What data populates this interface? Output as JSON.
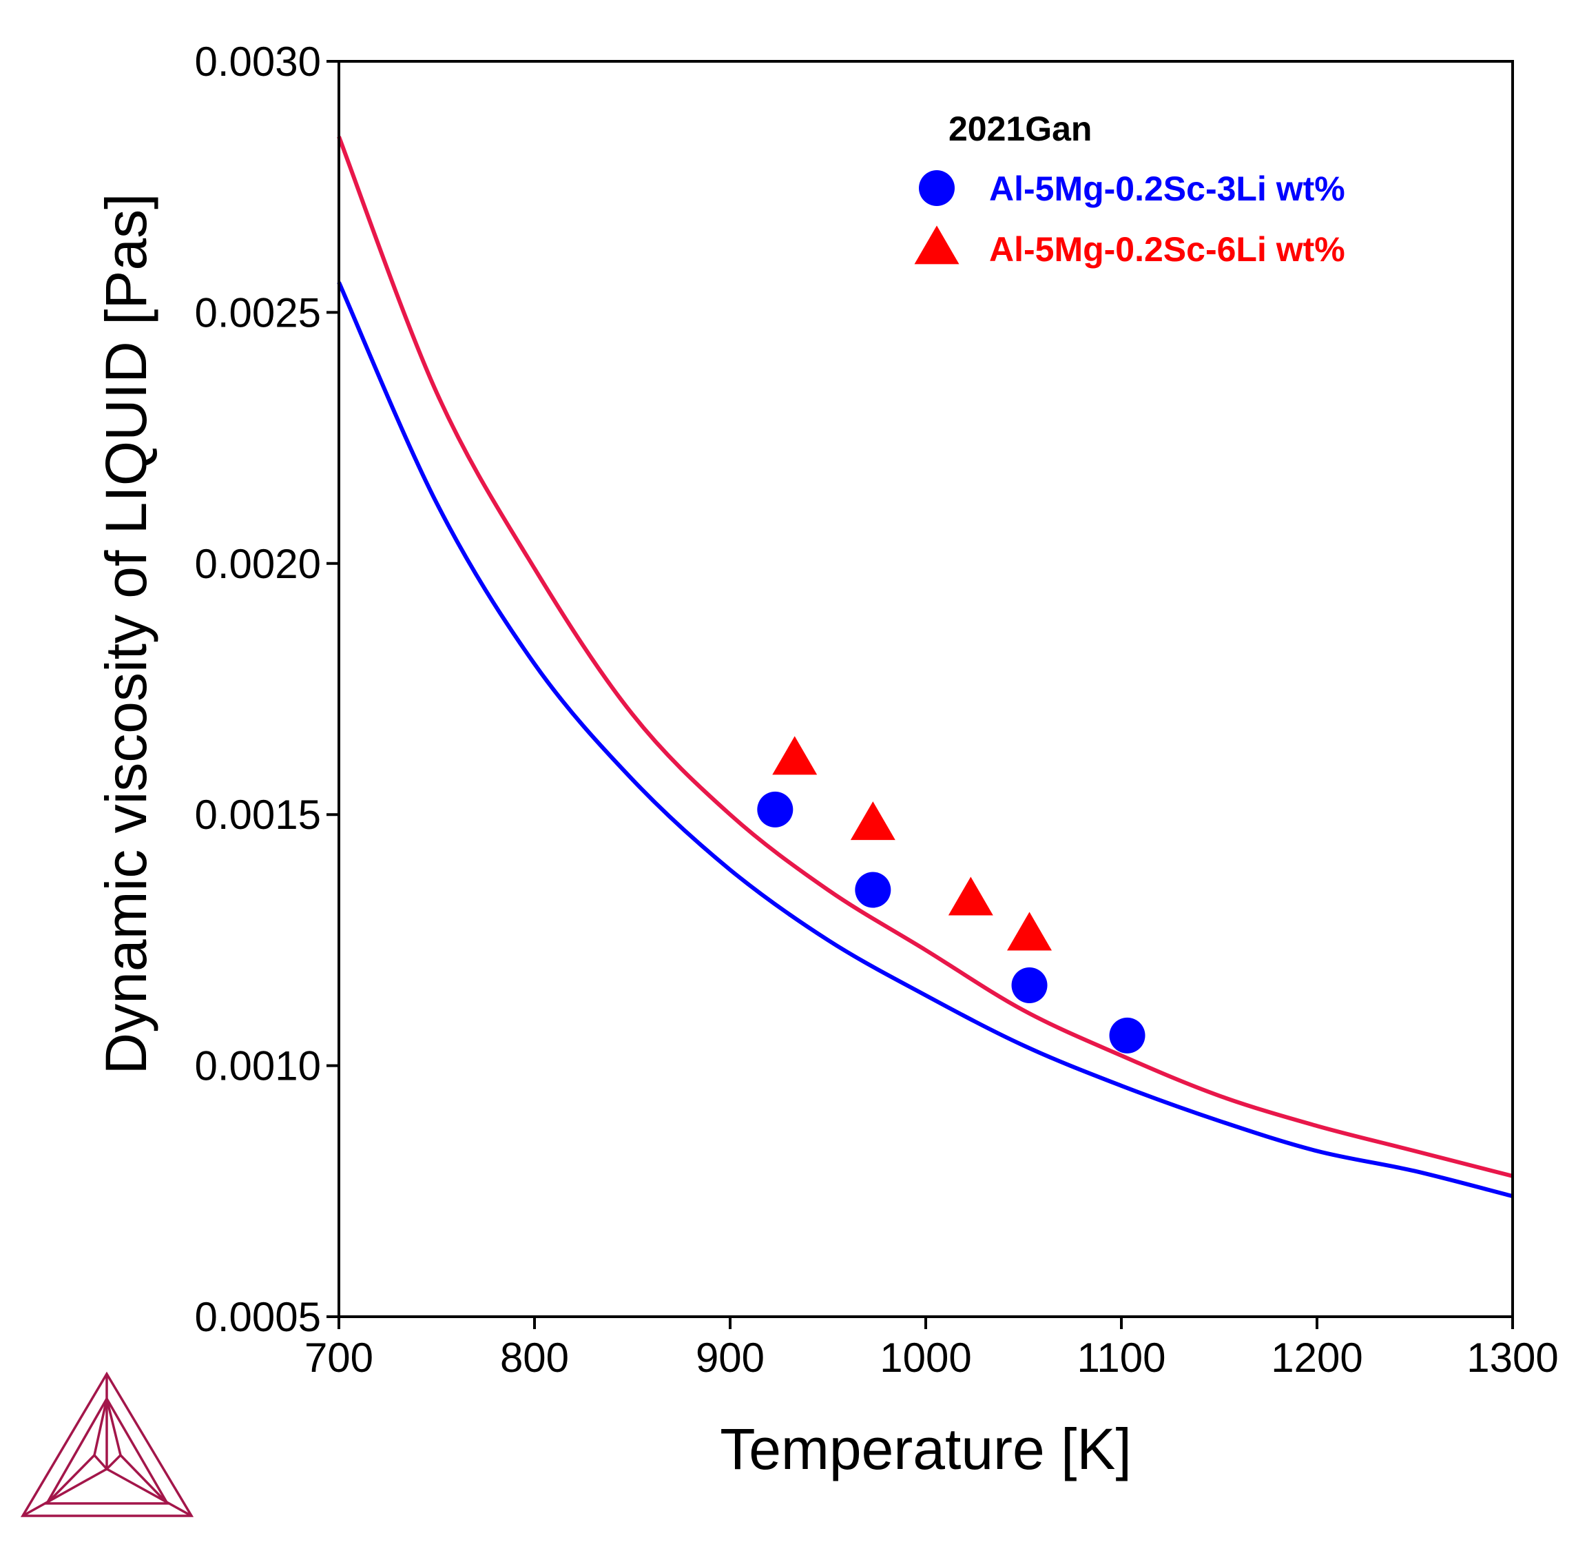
{
  "chart_data": {
    "type": "scatter",
    "xlabel": "Temperature [K]",
    "ylabel": "Dynamic viscosity of LIQUID [Pas]",
    "xlim": [
      700,
      1300
    ],
    "ylim": [
      0.0005,
      0.003
    ],
    "x_ticks": [
      "700",
      "800",
      "900",
      "1000",
      "1100",
      "1200",
      "1300"
    ],
    "y_ticks": [
      "0.0005",
      "0.0010",
      "0.0015",
      "0.0020",
      "0.0025",
      "0.0030"
    ],
    "x_tick_values": [
      700,
      800,
      900,
      1000,
      1100,
      1200,
      1300
    ],
    "y_tick_values": [
      0.0005,
      0.001,
      0.0015,
      0.002,
      0.0025,
      0.003
    ],
    "grid": false,
    "legend": {
      "title": "2021Gan",
      "placement": "top-right",
      "entries": [
        {
          "label": "Al-5Mg-0.2Sc-3Li wt%",
          "color": "#0000ff",
          "marker": "circle"
        },
        {
          "label": "Al-5Mg-0.2Sc-6Li wt%",
          "color": "#ff0000",
          "marker": "triangle"
        }
      ]
    },
    "series": [
      {
        "kind": "line",
        "color": "#0000ff",
        "x": [
          700,
          750,
          800,
          850,
          900,
          950,
          1000,
          1050,
          1100,
          1150,
          1200,
          1250,
          1300
        ],
        "y": [
          0.00256,
          0.00212,
          0.0018,
          0.00157,
          0.00139,
          0.00125,
          0.00114,
          0.00104,
          0.00096,
          0.00089,
          0.00083,
          0.00079,
          0.00074
        ]
      },
      {
        "kind": "line",
        "color": "#e8174a",
        "x": [
          700,
          750,
          800,
          850,
          900,
          950,
          1000,
          1050,
          1100,
          1150,
          1200,
          1250,
          1300
        ],
        "y": [
          0.00285,
          0.00234,
          0.00199,
          0.0017,
          0.0015,
          0.00135,
          0.00123,
          0.00111,
          0.00102,
          0.00094,
          0.00088,
          0.00083,
          0.00078
        ]
      },
      {
        "kind": "scatter",
        "marker": "circle",
        "color": "#0000ff",
        "x": [
          923,
          973,
          1053,
          1103
        ],
        "y": [
          0.00151,
          0.00135,
          0.00116,
          0.00106
        ]
      },
      {
        "kind": "scatter",
        "marker": "triangle",
        "color": "#ff0000",
        "x": [
          933,
          973,
          1023,
          1053
        ],
        "y": [
          0.00161,
          0.00148,
          0.00133,
          0.00126
        ]
      }
    ]
  },
  "logo": {
    "name": "triangle-logo-icon",
    "color": "#a3164a"
  }
}
